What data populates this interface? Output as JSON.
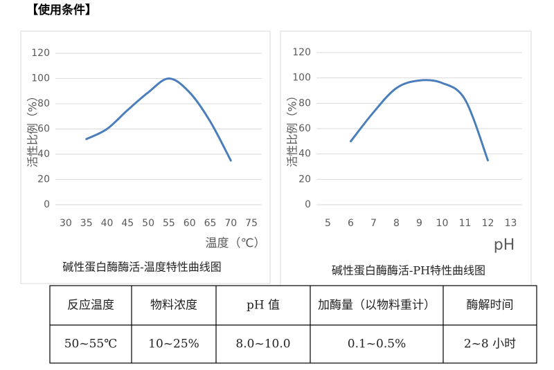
{
  "header": {
    "title": "【使用条件】"
  },
  "chart_data": [
    {
      "type": "line",
      "ylabel": "活性比例（%）",
      "xlabel": "温度（℃）",
      "caption": "碱性蛋白酶酶活-温度特性曲线图",
      "x": [
        35,
        40,
        45,
        50,
        55,
        60,
        65,
        70
      ],
      "series": [
        {
          "color": "#4a7ebb",
          "values": [
            52,
            60,
            75,
            89,
            100,
            89,
            66,
            35
          ]
        }
      ],
      "xlim": [
        27.5,
        77.5
      ],
      "xticks": [
        30,
        35,
        40,
        45,
        50,
        55,
        60,
        65,
        70,
        75
      ],
      "ylim": [
        0,
        120
      ],
      "yticks": [
        0,
        20,
        40,
        60,
        80,
        100,
        120
      ],
      "grid": true
    },
    {
      "type": "line",
      "ylabel": "活性比例（%）",
      "xlabel": "pH",
      "caption": "碱性蛋白酶酶活-PH特性曲线图",
      "x": [
        6,
        7,
        8,
        9,
        10,
        11,
        12
      ],
      "series": [
        {
          "color": "#4a7ebb",
          "values": [
            50,
            73,
            92,
            98,
            96,
            83,
            35
          ]
        }
      ],
      "xlim": [
        4.5,
        13.5
      ],
      "xticks": [
        5,
        6,
        7,
        8,
        9,
        10,
        11,
        12,
        13
      ],
      "ylim": [
        0,
        120
      ],
      "yticks": [
        0,
        20,
        40,
        60,
        80,
        100,
        120
      ],
      "grid": true
    }
  ],
  "table": {
    "header": [
      "反应温度",
      "物料浓度",
      "pH 值",
      "加酶量（以物料重计）",
      "酶解时间"
    ],
    "rows": [
      [
        "50~55℃",
        "10~25%",
        "8.0~10.0",
        "0.1~0.5%",
        "2~8 小时"
      ]
    ]
  }
}
